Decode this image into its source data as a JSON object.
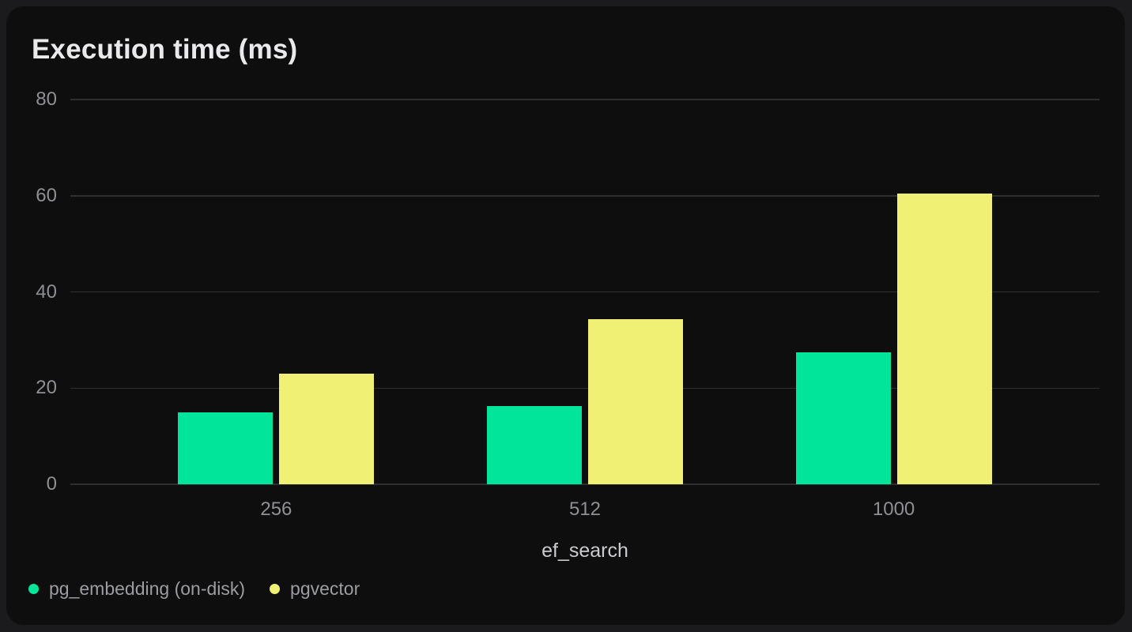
{
  "chart_data": {
    "type": "bar",
    "title": "Execution time (ms)",
    "categories": [
      "256",
      "512",
      "1000"
    ],
    "series": [
      {
        "name": "pg_embedding (on-disk)",
        "color": "#00e599",
        "values": [
          15.0,
          16.3,
          27.4
        ]
      },
      {
        "name": "pgvector",
        "color": "#f0f075",
        "values": [
          23.0,
          34.3,
          60.4
        ]
      }
    ],
    "xlabel": "ef_search",
    "ylabel": "",
    "ylim": [
      0,
      80
    ],
    "yticks": [
      0,
      20,
      40,
      60,
      80
    ],
    "grid": true,
    "legend_position": "bottom-left",
    "colors": {
      "card_background": "#0d0e0d",
      "page_background": "#1b1b1d",
      "grid_line": "#2e2f31",
      "tick_text": "#8f8f96",
      "axis_title_text": "#cacacf",
      "title_text": "#eaeaec"
    }
  }
}
